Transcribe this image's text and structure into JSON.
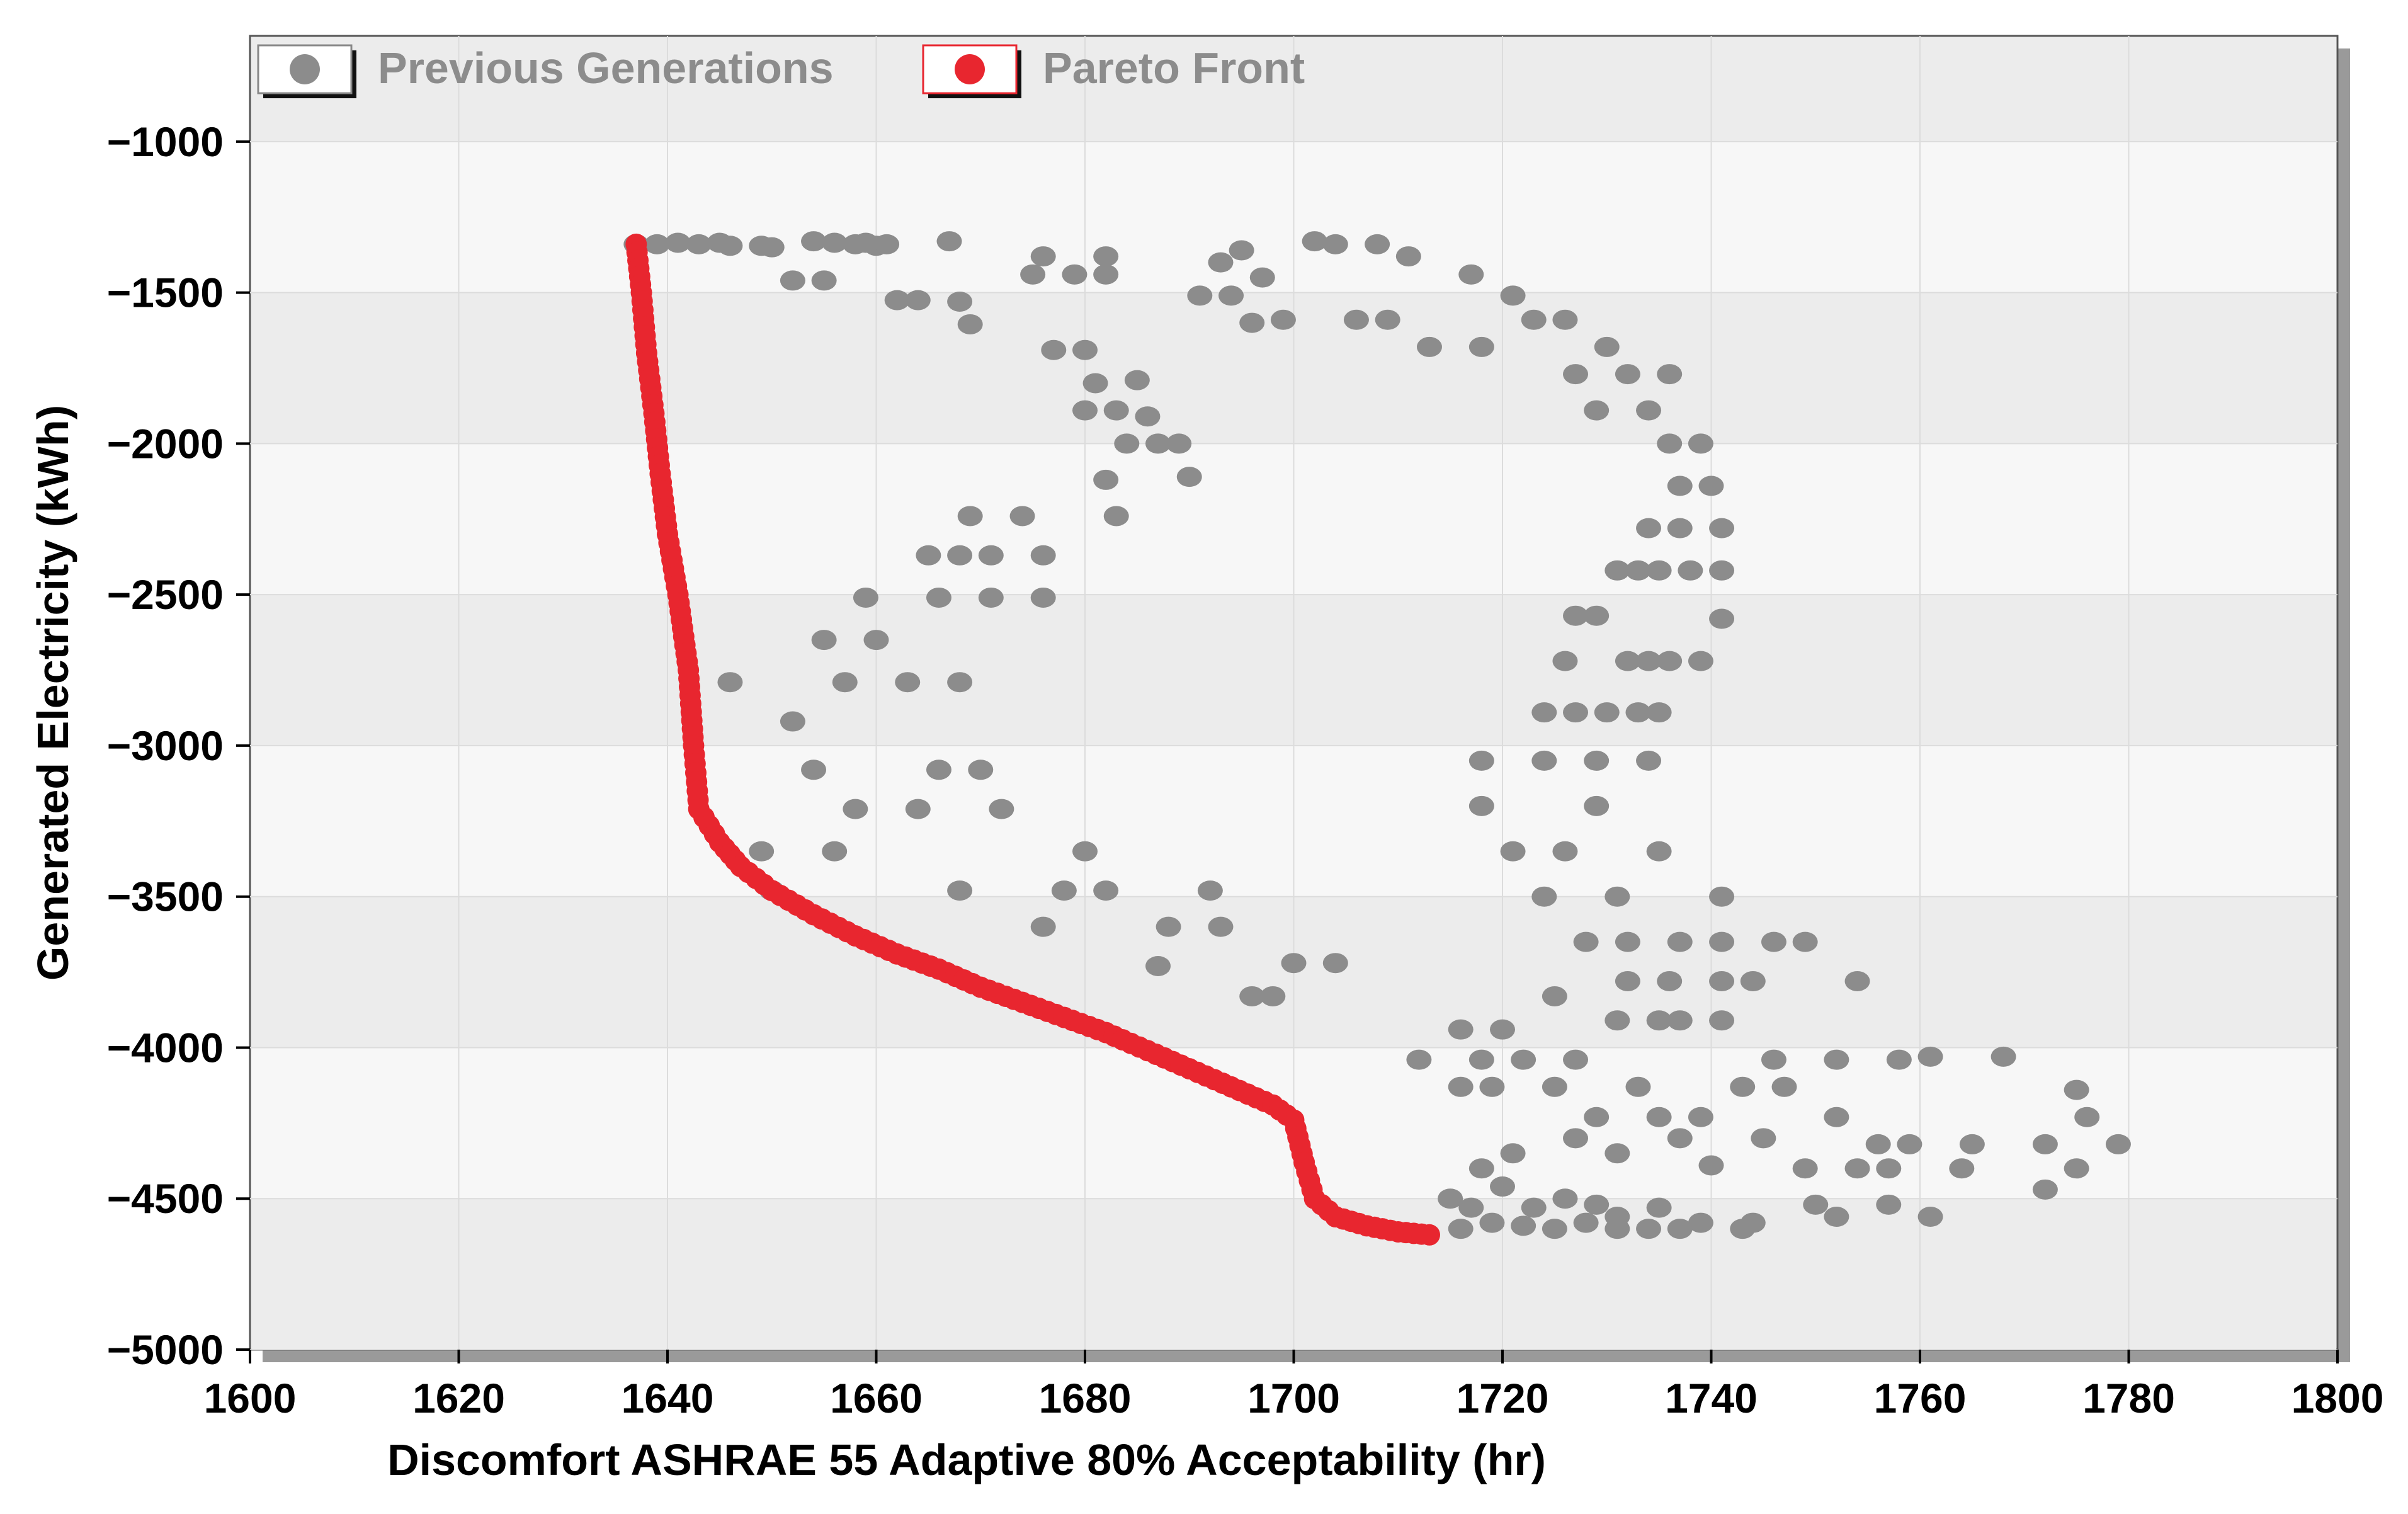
{
  "chart_data": {
    "type": "scatter",
    "title": "",
    "xlabel": "Discomfort ASHRAE 55 Adaptive 80% Acceptability (hr)",
    "ylabel": "Generated Electricity (kWh)",
    "xlim": [
      1600,
      1800
    ],
    "ylim": [
      -5000,
      -650
    ],
    "xticks": [
      1600,
      1620,
      1640,
      1660,
      1680,
      1700,
      1720,
      1740,
      1760,
      1780,
      1800
    ],
    "yticks": [
      -1000,
      -1500,
      -2000,
      -2500,
      -3000,
      -3500,
      -4000,
      -4500,
      -5000
    ],
    "grid": true,
    "legend_position": "top-left",
    "series": [
      {
        "name": "Previous Generations",
        "color": "#8c8c8c",
        "points": [
          [
            1637,
            -1340
          ],
          [
            1639,
            -1340
          ],
          [
            1641,
            -1335
          ],
          [
            1643,
            -1340
          ],
          [
            1645,
            -1335
          ],
          [
            1646,
            -1345
          ],
          [
            1649,
            -1345
          ],
          [
            1650,
            -1350
          ],
          [
            1652,
            -1460
          ],
          [
            1654,
            -1330
          ],
          [
            1655,
            -1460
          ],
          [
            1656,
            -1335
          ],
          [
            1658,
            -1340
          ],
          [
            1659,
            -1335
          ],
          [
            1660,
            -1345
          ],
          [
            1661,
            -1340
          ],
          [
            1662,
            -1525
          ],
          [
            1664,
            -1525
          ],
          [
            1667,
            -1330
          ],
          [
            1668,
            -1530
          ],
          [
            1669,
            -1605
          ],
          [
            1675,
            -1440
          ],
          [
            1677,
            -1690
          ],
          [
            1676,
            -1380
          ],
          [
            1679,
            -1440
          ],
          [
            1680,
            -1690
          ],
          [
            1680,
            -1890
          ],
          [
            1681,
            -1800
          ],
          [
            1682,
            -1380
          ],
          [
            1682,
            -1440
          ],
          [
            1683,
            -1890
          ],
          [
            1684,
            -2000
          ],
          [
            1685,
            -1790
          ],
          [
            1686,
            -1910
          ],
          [
            1687,
            -2000
          ],
          [
            1689,
            -2000
          ],
          [
            1690,
            -2110
          ],
          [
            1691,
            -1510
          ],
          [
            1693,
            -1400
          ],
          [
            1694,
            -1510
          ],
          [
            1695,
            -1360
          ],
          [
            1696,
            -1600
          ],
          [
            1697,
            -1450
          ],
          [
            1699,
            -1590
          ],
          [
            1702,
            -1330
          ],
          [
            1704,
            -1340
          ],
          [
            1706,
            -1590
          ],
          [
            1708,
            -1340
          ],
          [
            1709,
            -1590
          ],
          [
            1711,
            -1380
          ],
          [
            1713,
            -1680
          ],
          [
            1717,
            -1440
          ],
          [
            1718,
            -1680
          ],
          [
            1721,
            -1510
          ],
          [
            1723,
            -1590
          ],
          [
            1726,
            -1590
          ],
          [
            1727,
            -1770
          ],
          [
            1729,
            -1890
          ],
          [
            1730,
            -1680
          ],
          [
            1732,
            -1770
          ],
          [
            1734,
            -1890
          ],
          [
            1736,
            -1770
          ],
          [
            1736,
            -2000
          ],
          [
            1737,
            -2140
          ],
          [
            1739,
            -2000
          ],
          [
            1740,
            -2140
          ],
          [
            1741,
            -2280
          ],
          [
            1734,
            -2280
          ],
          [
            1737,
            -2280
          ],
          [
            1731,
            -2420
          ],
          [
            1733,
            -2420
          ],
          [
            1735,
            -2420
          ],
          [
            1738,
            -2420
          ],
          [
            1741,
            -2420
          ],
          [
            1741,
            -2580
          ],
          [
            1727,
            -2570
          ],
          [
            1729,
            -2570
          ],
          [
            1732,
            -2720
          ],
          [
            1734,
            -2720
          ],
          [
            1736,
            -2720
          ],
          [
            1739,
            -2720
          ],
          [
            1726,
            -2720
          ],
          [
            1724,
            -2890
          ],
          [
            1727,
            -2890
          ],
          [
            1730,
            -2890
          ],
          [
            1733,
            -2890
          ],
          [
            1735,
            -2890
          ],
          [
            1718,
            -3050
          ],
          [
            1724,
            -3050
          ],
          [
            1729,
            -3050
          ],
          [
            1734,
            -3050
          ],
          [
            1718,
            -3200
          ],
          [
            1721,
            -3350
          ],
          [
            1726,
            -3350
          ],
          [
            1729,
            -3200
          ],
          [
            1735,
            -3350
          ],
          [
            1724,
            -3500
          ],
          [
            1731,
            -3500
          ],
          [
            1741,
            -3500
          ],
          [
            1728,
            -3650
          ],
          [
            1732,
            -3650
          ],
          [
            1737,
            -3650
          ],
          [
            1741,
            -3650
          ],
          [
            1746,
            -3650
          ],
          [
            1749,
            -3650
          ],
          [
            1725,
            -3830
          ],
          [
            1732,
            -3780
          ],
          [
            1736,
            -3780
          ],
          [
            1741,
            -3780
          ],
          [
            1744,
            -3780
          ],
          [
            1754,
            -3780
          ],
          [
            1712,
            -4040
          ],
          [
            1716,
            -3940
          ],
          [
            1718,
            -4040
          ],
          [
            1720,
            -3940
          ],
          [
            1722,
            -4040
          ],
          [
            1727,
            -4040
          ],
          [
            1731,
            -3910
          ],
          [
            1735,
            -3910
          ],
          [
            1737,
            -3910
          ],
          [
            1741,
            -3910
          ],
          [
            1746,
            -4040
          ],
          [
            1752,
            -4040
          ],
          [
            1758,
            -4040
          ],
          [
            1761,
            -4030
          ],
          [
            1768,
            -4030
          ],
          [
            1775,
            -4140
          ],
          [
            1716,
            -4130
          ],
          [
            1719,
            -4130
          ],
          [
            1725,
            -4130
          ],
          [
            1729,
            -4230
          ],
          [
            1733,
            -4130
          ],
          [
            1735,
            -4230
          ],
          [
            1739,
            -4230
          ],
          [
            1743,
            -4130
          ],
          [
            1747,
            -4130
          ],
          [
            1752,
            -4230
          ],
          [
            1756,
            -4320
          ],
          [
            1759,
            -4320
          ],
          [
            1765,
            -4320
          ],
          [
            1772,
            -4320
          ],
          [
            1776,
            -4230
          ],
          [
            1779,
            -4320
          ],
          [
            1718,
            -4400
          ],
          [
            1721,
            -4350
          ],
          [
            1727,
            -4300
          ],
          [
            1731,
            -4350
          ],
          [
            1737,
            -4300
          ],
          [
            1740,
            -4390
          ],
          [
            1745,
            -4300
          ],
          [
            1749,
            -4400
          ],
          [
            1754,
            -4400
          ],
          [
            1757,
            -4400
          ],
          [
            1764,
            -4400
          ],
          [
            1775,
            -4400
          ],
          [
            1772,
            -4470
          ],
          [
            1715,
            -4500
          ],
          [
            1717,
            -4530
          ],
          [
            1720,
            -4460
          ],
          [
            1723,
            -4530
          ],
          [
            1726,
            -4500
          ],
          [
            1729,
            -4520
          ],
          [
            1731,
            -4560
          ],
          [
            1735,
            -4530
          ],
          [
            1739,
            -4580
          ],
          [
            1744,
            -4580
          ],
          [
            1750,
            -4520
          ],
          [
            1752,
            -4560
          ],
          [
            1757,
            -4520
          ],
          [
            1761,
            -4560
          ],
          [
            1716,
            -4600
          ],
          [
            1719,
            -4580
          ],
          [
            1722,
            -4590
          ],
          [
            1725,
            -4600
          ],
          [
            1728,
            -4580
          ],
          [
            1731,
            -4600
          ],
          [
            1734,
            -4600
          ],
          [
            1737,
            -4600
          ],
          [
            1743,
            -4600
          ],
          [
            1646,
            -2790
          ],
          [
            1649,
            -3350
          ],
          [
            1650,
            -3480
          ],
          [
            1652,
            -2920
          ],
          [
            1654,
            -3080
          ],
          [
            1655,
            -2650
          ],
          [
            1656,
            -3350
          ],
          [
            1657,
            -2790
          ],
          [
            1658,
            -3210
          ],
          [
            1659,
            -2510
          ],
          [
            1660,
            -2650
          ],
          [
            1663,
            -2790
          ],
          [
            1664,
            -3210
          ],
          [
            1665,
            -2370
          ],
          [
            1666,
            -2510
          ],
          [
            1666,
            -3080
          ],
          [
            1668,
            -2370
          ],
          [
            1668,
            -2790
          ],
          [
            1668,
            -3480
          ],
          [
            1669,
            -2240
          ],
          [
            1670,
            -3080
          ],
          [
            1671,
            -2370
          ],
          [
            1671,
            -2510
          ],
          [
            1672,
            -3210
          ],
          [
            1674,
            -2240
          ],
          [
            1676,
            -2370
          ],
          [
            1676,
            -2510
          ],
          [
            1676,
            -3600
          ],
          [
            1678,
            -3480
          ],
          [
            1680,
            -3350
          ],
          [
            1682,
            -2120
          ],
          [
            1682,
            -3480
          ],
          [
            1683,
            -2240
          ],
          [
            1687,
            -3730
          ],
          [
            1688,
            -3600
          ],
          [
            1692,
            -3480
          ],
          [
            1693,
            -3600
          ],
          [
            1696,
            -3830
          ],
          [
            1698,
            -3830
          ],
          [
            1700,
            -3720
          ],
          [
            1704,
            -3720
          ]
        ]
      },
      {
        "name": "Pareto Front",
        "color": "#e8262f",
        "points": [
          [
            1637,
            -1340
          ],
          [
            1637.5,
            -1500
          ],
          [
            1638,
            -1700
          ],
          [
            1638.7,
            -1900
          ],
          [
            1639.3,
            -2100
          ],
          [
            1640,
            -2300
          ],
          [
            1641,
            -2500
          ],
          [
            1642,
            -2750
          ],
          [
            1642.5,
            -3000
          ],
          [
            1643,
            -3210
          ],
          [
            1645,
            -3320
          ],
          [
            1647,
            -3400
          ],
          [
            1650,
            -3480
          ],
          [
            1654,
            -3560
          ],
          [
            1658,
            -3630
          ],
          [
            1662,
            -3690
          ],
          [
            1666,
            -3740
          ],
          [
            1670,
            -3800
          ],
          [
            1674,
            -3850
          ],
          [
            1678,
            -3900
          ],
          [
            1682,
            -3950
          ],
          [
            1686,
            -4010
          ],
          [
            1690,
            -4070
          ],
          [
            1694,
            -4130
          ],
          [
            1698,
            -4190
          ],
          [
            1700,
            -4240
          ],
          [
            1701,
            -4380
          ],
          [
            1702,
            -4500
          ],
          [
            1704,
            -4560
          ],
          [
            1707,
            -4590
          ],
          [
            1710,
            -4610
          ],
          [
            1713,
            -4620
          ]
        ]
      }
    ]
  },
  "legend": {
    "previous_label": "Previous Generations",
    "pareto_label": "Pareto Front"
  }
}
